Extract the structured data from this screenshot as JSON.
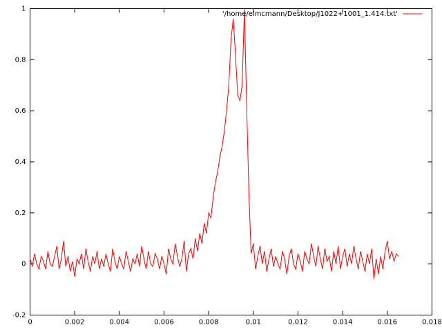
{
  "chart_data": {
    "type": "line",
    "x": [
      0,
      0.0001,
      0.0002,
      0.0003,
      0.0004,
      0.0005,
      0.0006,
      0.0007,
      0.0008,
      0.0009,
      0.001,
      0.0011,
      0.0012,
      0.0013,
      0.0014,
      0.0015,
      0.0016,
      0.0017,
      0.0018,
      0.0019,
      0.002,
      0.0021,
      0.0022,
      0.0023,
      0.0024,
      0.0025,
      0.0026,
      0.0027,
      0.0028,
      0.0029,
      0.003,
      0.0031,
      0.0032,
      0.0033,
      0.0034,
      0.0035,
      0.0036,
      0.0037,
      0.0038,
      0.0039,
      0.004,
      0.0041,
      0.0042,
      0.0043,
      0.0044,
      0.0045,
      0.0046,
      0.0047,
      0.0048,
      0.0049,
      0.005,
      0.0051,
      0.0052,
      0.0053,
      0.0054,
      0.0055,
      0.0056,
      0.0057,
      0.0058,
      0.0059,
      0.006,
      0.0061,
      0.0062,
      0.0063,
      0.0064,
      0.0065,
      0.0066,
      0.0067,
      0.0068,
      0.0069,
      0.007,
      0.0071,
      0.0072,
      0.0073,
      0.0074,
      0.0075,
      0.0076,
      0.0077,
      0.0078,
      0.0079,
      0.008,
      0.0081,
      0.0082,
      0.0083,
      0.0084,
      0.0085,
      0.0086,
      0.0087,
      0.0088,
      0.0089,
      0.009,
      0.0091,
      0.0092,
      0.0093,
      0.0094,
      0.0095,
      0.0096,
      0.0097,
      0.0098,
      0.0099,
      0.01,
      0.0101,
      0.0102,
      0.0103,
      0.0104,
      0.0105,
      0.0106,
      0.0107,
      0.0108,
      0.0109,
      0.011,
      0.0111,
      0.0112,
      0.0113,
      0.0114,
      0.0115,
      0.0116,
      0.0117,
      0.0118,
      0.0119,
      0.012,
      0.0121,
      0.0122,
      0.0123,
      0.0124,
      0.0125,
      0.0126,
      0.0127,
      0.0128,
      0.0129,
      0.013,
      0.0131,
      0.0132,
      0.0133,
      0.0134,
      0.0135,
      0.0136,
      0.0137,
      0.0138,
      0.0139,
      0.014,
      0.0141,
      0.0142,
      0.0143,
      0.0144,
      0.0145,
      0.0146,
      0.0147,
      0.0148,
      0.0149,
      0.015,
      0.0151,
      0.0152,
      0.0153,
      0.0154,
      0.0155,
      0.0156,
      0.0157,
      0.0158,
      0.0159,
      0.016,
      0.0161,
      0.0162,
      0.0163,
      0.0164,
      0.0165
    ],
    "series": [
      {
        "name": "'/home/elmcmann/Desktop/J1022+1001_1.414.txt'",
        "color": "#ff0000",
        "values": [
          0.02,
          -0.01,
          0.04,
          0.0,
          -0.02,
          0.03,
          0.01,
          -0.02,
          0.05,
          0.0,
          -0.01,
          0.03,
          0.07,
          -0.02,
          0.02,
          0.09,
          -0.01,
          0.03,
          -0.03,
          0.01,
          -0.05,
          0.02,
          0.0,
          0.04,
          -0.02,
          0.06,
          0.01,
          -0.03,
          0.03,
          0.0,
          0.05,
          -0.02,
          0.02,
          -0.01,
          0.04,
          0.0,
          -0.03,
          0.06,
          0.01,
          -0.02,
          0.03,
          0.0,
          -0.02,
          0.05,
          0.01,
          -0.03,
          0.02,
          0.0,
          0.04,
          -0.01,
          0.07,
          0.02,
          -0.02,
          0.05,
          0.0,
          -0.01,
          0.04,
          0.02,
          -0.02,
          0.03,
          0.0,
          -0.04,
          0.06,
          0.02,
          0.0,
          0.08,
          0.03,
          -0.01,
          0.02,
          0.09,
          -0.03,
          0.04,
          0.06,
          0.02,
          0.1,
          0.05,
          0.12,
          0.08,
          0.16,
          0.12,
          0.2,
          0.18,
          0.26,
          0.32,
          0.36,
          0.42,
          0.46,
          0.52,
          0.6,
          0.7,
          0.88,
          0.96,
          0.82,
          0.66,
          0.64,
          0.7,
          1.0,
          0.62,
          0.28,
          0.04,
          0.08,
          -0.02,
          0.03,
          0.07,
          0.0,
          0.05,
          -0.03,
          0.02,
          0.06,
          -0.01,
          0.03,
          0.0,
          -0.02,
          0.05,
          0.02,
          -0.04,
          0.03,
          0.06,
          0.0,
          -0.02,
          0.04,
          0.01,
          -0.03,
          0.05,
          0.02,
          0.0,
          0.08,
          0.03,
          -0.01,
          0.07,
          0.02,
          -0.02,
          0.06,
          0.01,
          0.03,
          -0.03,
          0.05,
          0.0,
          0.07,
          -0.02,
          0.03,
          0.06,
          -0.01,
          0.04,
          0.0,
          0.07,
          0.02,
          -0.02,
          0.05,
          0.01,
          -0.03,
          0.04,
          0.0,
          0.06,
          -0.06,
          0.02,
          -0.04,
          0.03,
          -0.02,
          0.05,
          0.09,
          0.02,
          0.05,
          0.01,
          0.04,
          0.03
        ]
      }
    ],
    "xlim": [
      0,
      0.018
    ],
    "xticks": [
      0,
      0.002,
      0.004,
      0.006,
      0.008,
      0.01,
      0.012,
      0.014,
      0.016,
      0.018
    ],
    "ylim": [
      -0.2,
      1
    ],
    "yticks": [
      -0.2,
      0,
      0.2,
      0.4,
      0.6,
      0.8,
      1
    ],
    "legend": "top-right"
  }
}
